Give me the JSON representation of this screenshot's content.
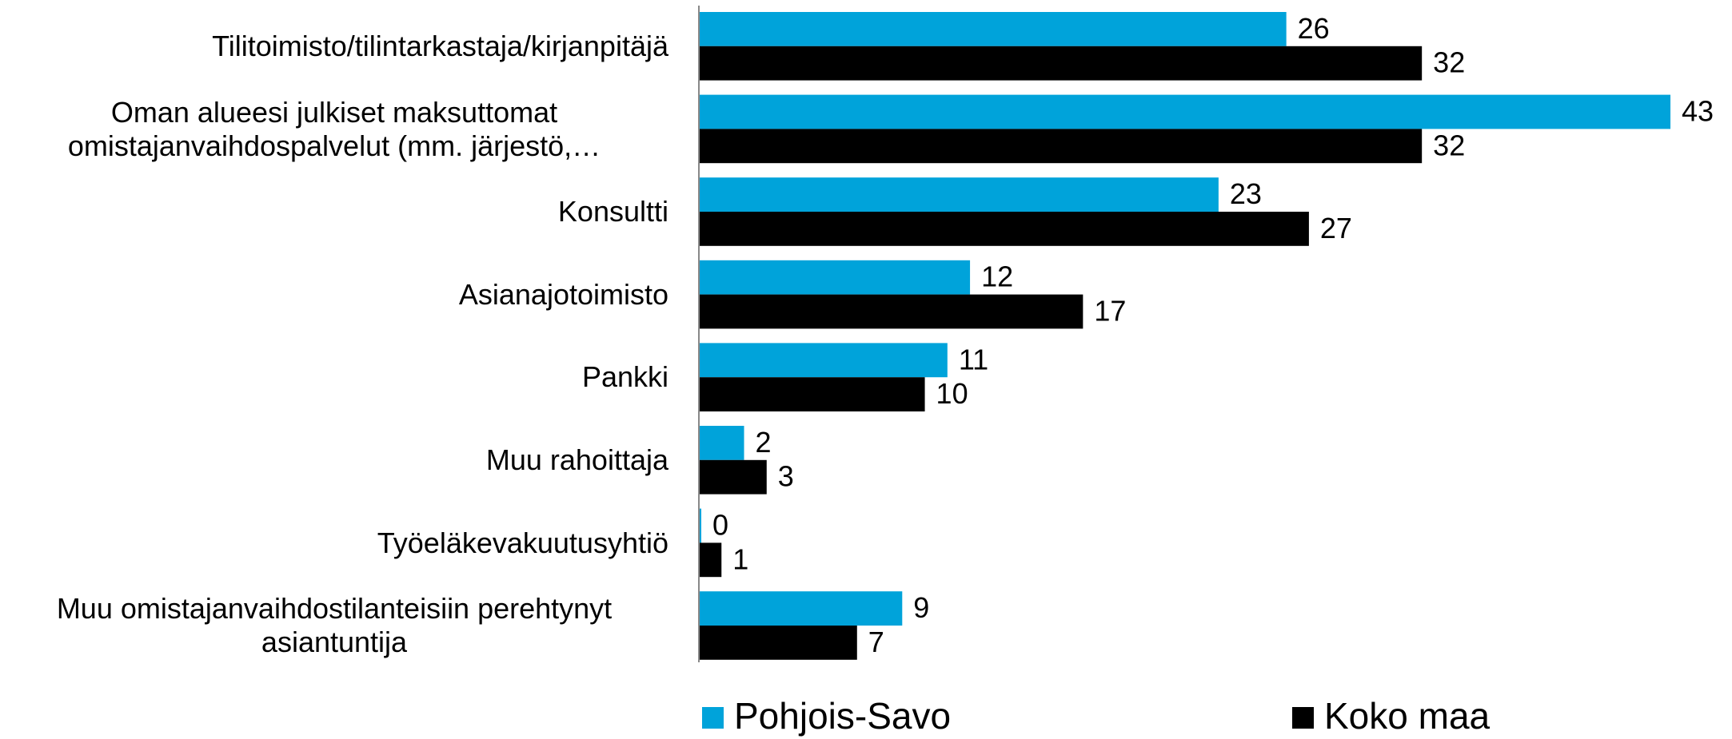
{
  "chart_data": {
    "type": "bar",
    "orientation": "horizontal",
    "categories": [
      "Tilitoimisto/tilintarkastaja/kirjanpitäjä",
      "Oman alueesi julkiset maksuttomat omistajanvaihdospalvelut (mm. järjestö,…",
      "Konsultti",
      "Asianajotoimisto",
      "Pankki",
      "Muu rahoittaja",
      "Työeläkevakuutusyhtiö",
      "Muu omistajanvaihdostilanteisiin perehtynyt asiantuntija"
    ],
    "series": [
      {
        "name": "Pohjois-Savo",
        "color": "#00a3da",
        "values": [
          26,
          43,
          23,
          12,
          11,
          2,
          0,
          9
        ]
      },
      {
        "name": "Koko maa",
        "color": "#000000",
        "values": [
          32,
          32,
          27,
          17,
          10,
          3,
          1,
          7
        ]
      }
    ],
    "legend": "bottom"
  }
}
